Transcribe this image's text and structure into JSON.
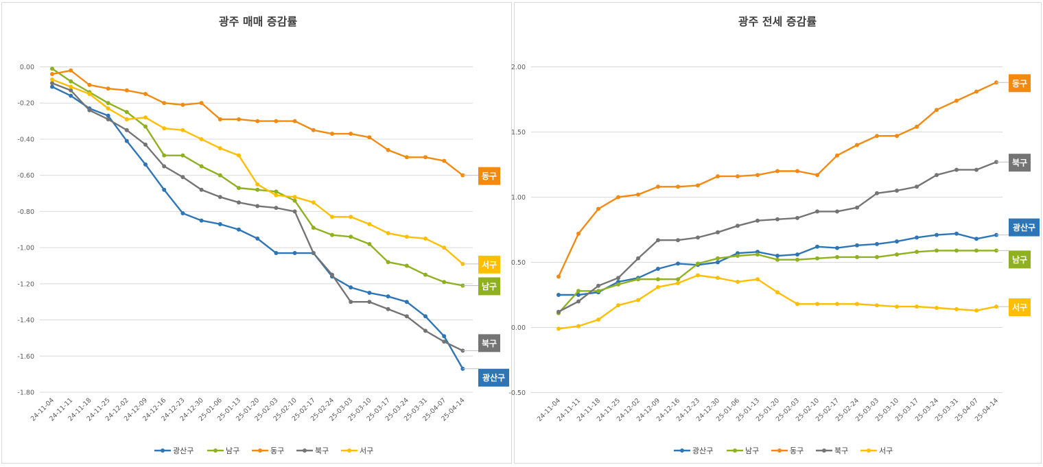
{
  "chart_data": [
    {
      "type": "line",
      "title": "광주 매매 증감률",
      "xlabel": "",
      "ylabel": "",
      "ylim": [
        -1.8,
        0.0
      ],
      "yticks": [
        "0.00",
        "-0.20",
        "-0.40",
        "-0.60",
        "-0.80",
        "-1.00",
        "-1.20",
        "-1.40",
        "-1.60",
        "-1.80"
      ],
      "ytick_values": [
        0.0,
        -0.2,
        -0.4,
        -0.6,
        -0.8,
        -1.0,
        -1.2,
        -1.4,
        -1.6,
        -1.8
      ],
      "grid": true,
      "legend_position": "bottom",
      "categories": [
        "24-11-04",
        "24-11-11",
        "24-11-18",
        "24-11-25",
        "24-12-02",
        "24-12-09",
        "24-12-16",
        "24-12-23",
        "24-12-30",
        "25-01-06",
        "25-01-13",
        "25-01-20",
        "25-02-03",
        "25-02-10",
        "25-02-17",
        "25-02-24",
        "25-03-03",
        "25-03-10",
        "25-03-17",
        "25-03-24",
        "25-03-31",
        "25-04-07",
        "25-04-14"
      ],
      "series": [
        {
          "name": "광산구",
          "color": "#2e75b6",
          "values": [
            -0.11,
            -0.16,
            -0.23,
            -0.27,
            -0.41,
            -0.54,
            -0.68,
            -0.81,
            -0.85,
            -0.87,
            -0.9,
            -0.95,
            -1.03,
            -1.03,
            -1.03,
            -1.16,
            -1.22,
            -1.25,
            -1.27,
            -1.3,
            -1.38,
            -1.49,
            -1.67
          ]
        },
        {
          "name": "남구",
          "color": "#8fb020",
          "values": [
            -0.01,
            -0.08,
            -0.14,
            -0.2,
            -0.25,
            -0.33,
            -0.49,
            -0.49,
            -0.55,
            -0.6,
            -0.67,
            -0.68,
            -0.69,
            -0.74,
            -0.89,
            -0.93,
            -0.94,
            -0.98,
            -1.08,
            -1.1,
            -1.15,
            -1.19,
            -1.21
          ]
        },
        {
          "name": "동구",
          "color": "#f28a12",
          "values": [
            -0.04,
            -0.02,
            -0.1,
            -0.12,
            -0.13,
            -0.15,
            -0.2,
            -0.21,
            -0.2,
            -0.29,
            -0.29,
            -0.3,
            -0.3,
            -0.3,
            -0.35,
            -0.37,
            -0.37,
            -0.39,
            -0.46,
            -0.5,
            -0.5,
            -0.52,
            -0.6
          ]
        },
        {
          "name": "북구",
          "color": "#747474",
          "values": [
            -0.09,
            -0.13,
            -0.24,
            -0.29,
            -0.35,
            -0.43,
            -0.55,
            -0.61,
            -0.68,
            -0.72,
            -0.75,
            -0.77,
            -0.78,
            -0.8,
            -1.03,
            -1.15,
            -1.3,
            -1.3,
            -1.34,
            -1.38,
            -1.46,
            -1.52,
            -1.57
          ]
        },
        {
          "name": "서구",
          "color": "#ffbf00",
          "values": [
            -0.07,
            -0.11,
            -0.15,
            -0.23,
            -0.29,
            -0.28,
            -0.34,
            -0.35,
            -0.4,
            -0.45,
            -0.49,
            -0.65,
            -0.71,
            -0.72,
            -0.75,
            -0.83,
            -0.83,
            -0.87,
            -0.92,
            -0.94,
            -0.95,
            -1.0,
            -1.09
          ]
        }
      ],
      "end_labels": [
        "동구",
        "서구",
        "남구",
        "북구",
        "광산구"
      ]
    },
    {
      "type": "line",
      "title": "광주 전세 증감률",
      "xlabel": "",
      "ylabel": "",
      "ylim": [
        -0.5,
        2.0
      ],
      "yticks": [
        "2.00",
        "1.50",
        "1.00",
        "0.50",
        "0.00",
        "-0.50"
      ],
      "ytick_values": [
        2.0,
        1.5,
        1.0,
        0.5,
        0.0,
        -0.5
      ],
      "grid": true,
      "legend_position": "bottom",
      "categories": [
        "24-11-04",
        "24-11-11",
        "24-11-18",
        "24-11-25",
        "24-12-02",
        "24-12-09",
        "24-12-16",
        "24-12-23",
        "24-12-30",
        "25-01-06",
        "25-01-13",
        "25-01-20",
        "25-02-03",
        "25-02-10",
        "25-02-17",
        "25-02-24",
        "25-03-03",
        "25-03-10",
        "25-03-17",
        "25-03-24",
        "25-03-31",
        "25-04-07",
        "25-04-14"
      ],
      "series": [
        {
          "name": "광산구",
          "color": "#2e75b6",
          "values": [
            0.25,
            0.25,
            0.27,
            0.35,
            0.38,
            0.45,
            0.49,
            0.48,
            0.5,
            0.57,
            0.58,
            0.55,
            0.56,
            0.62,
            0.61,
            0.63,
            0.64,
            0.66,
            0.69,
            0.71,
            0.72,
            0.68,
            0.71
          ]
        },
        {
          "name": "남구",
          "color": "#8fb020",
          "values": [
            0.11,
            0.28,
            0.28,
            0.33,
            0.37,
            0.37,
            0.37,
            0.49,
            0.53,
            0.55,
            0.56,
            0.52,
            0.52,
            0.53,
            0.54,
            0.54,
            0.54,
            0.56,
            0.58,
            0.59,
            0.59,
            0.59,
            0.59
          ]
        },
        {
          "name": "동구",
          "color": "#f28a12",
          "values": [
            0.39,
            0.72,
            0.91,
            1.0,
            1.02,
            1.08,
            1.08,
            1.09,
            1.16,
            1.16,
            1.17,
            1.2,
            1.2,
            1.17,
            1.32,
            1.4,
            1.47,
            1.47,
            1.54,
            1.67,
            1.74,
            1.81,
            1.88
          ]
        },
        {
          "name": "북구",
          "color": "#747474",
          "values": [
            0.12,
            0.2,
            0.32,
            0.38,
            0.53,
            0.67,
            0.67,
            0.69,
            0.73,
            0.78,
            0.82,
            0.83,
            0.84,
            0.89,
            0.89,
            0.92,
            1.03,
            1.05,
            1.08,
            1.17,
            1.21,
            1.21,
            1.27
          ]
        },
        {
          "name": "서구",
          "color": "#ffbf00",
          "values": [
            -0.01,
            0.01,
            0.06,
            0.17,
            0.21,
            0.31,
            0.34,
            0.4,
            0.38,
            0.35,
            0.37,
            0.27,
            0.18,
            0.18,
            0.18,
            0.18,
            0.17,
            0.16,
            0.16,
            0.15,
            0.14,
            0.13,
            0.16
          ]
        }
      ],
      "end_labels": [
        "동구",
        "북구",
        "광산구",
        "남구",
        "서구"
      ]
    }
  ]
}
